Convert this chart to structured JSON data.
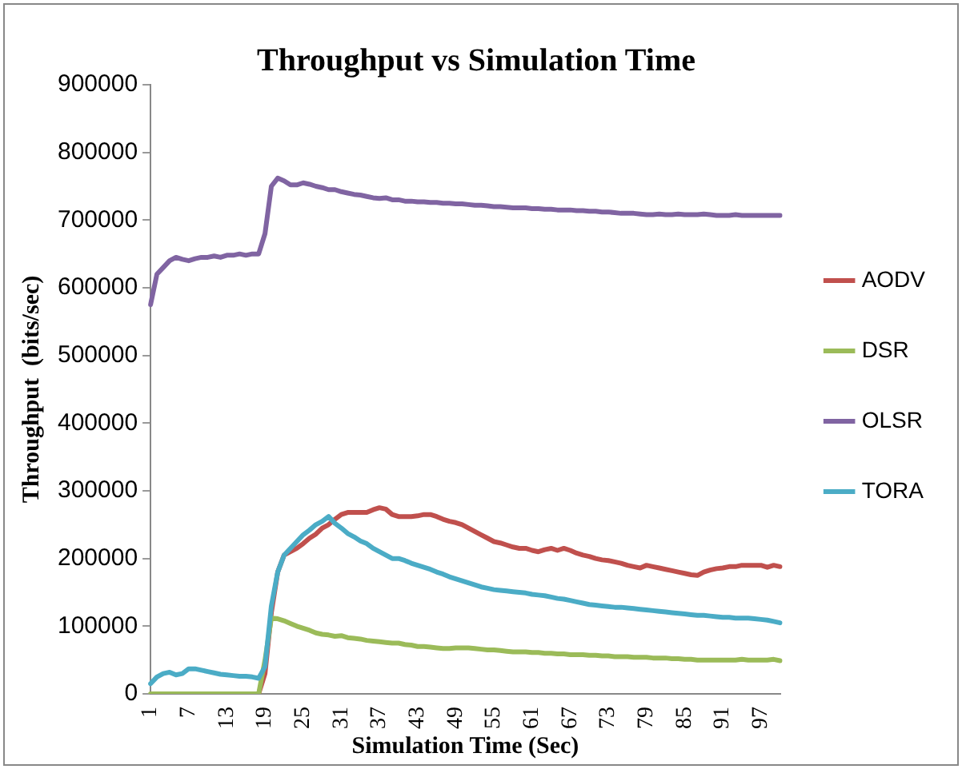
{
  "chart_data": {
    "type": "line",
    "title": "Throughput vs Simulation Time",
    "xlabel": "Simulation Time (Sec)",
    "ylabel": "Throughput  (bits/sec)",
    "categories": [
      "1",
      null,
      null,
      null,
      null,
      null,
      "7",
      null,
      null,
      null,
      null,
      null,
      "13",
      null,
      null,
      null,
      null,
      null,
      "19",
      null,
      null,
      null,
      null,
      null,
      "25",
      null,
      null,
      null,
      null,
      null,
      "31",
      null,
      null,
      null,
      null,
      null,
      "37",
      null,
      null,
      null,
      null,
      null,
      "43",
      null,
      null,
      null,
      null,
      null,
      "49",
      null,
      null,
      null,
      null,
      null,
      "55",
      null,
      null,
      null,
      null,
      null,
      "61",
      null,
      null,
      null,
      null,
      null,
      "67",
      null,
      null,
      null,
      null,
      null,
      "73",
      null,
      null,
      null,
      null,
      null,
      "79",
      null,
      null,
      null,
      null,
      null,
      "85",
      null,
      null,
      null,
      null,
      null,
      "91",
      null,
      null,
      null,
      null,
      null,
      "97",
      null,
      null,
      null
    ],
    "ylim": [
      0,
      900000
    ],
    "yticks": [
      0,
      100000,
      200000,
      300000,
      400000,
      500000,
      600000,
      700000,
      800000,
      900000
    ],
    "grid": false,
    "legend": "right",
    "marker": "none",
    "line_style": "solid",
    "series": [
      {
        "name": "AODV",
        "color": "#c0504d",
        "values": [
          null,
          null,
          null,
          null,
          null,
          null,
          null,
          null,
          null,
          null,
          null,
          null,
          null,
          null,
          null,
          null,
          null,
          0,
          30000,
          120000,
          180000,
          205000,
          210000,
          215000,
          222000,
          230000,
          236000,
          245000,
          250000,
          258000,
          265000,
          268000,
          268000,
          268000,
          268000,
          272000,
          275000,
          273000,
          265000,
          262000,
          262000,
          262000,
          263000,
          265000,
          265000,
          262000,
          258000,
          255000,
          253000,
          250000,
          245000,
          240000,
          235000,
          230000,
          225000,
          223000,
          220000,
          217000,
          215000,
          215000,
          212000,
          210000,
          213000,
          215000,
          212000,
          215000,
          212000,
          208000,
          205000,
          203000,
          200000,
          198000,
          197000,
          195000,
          193000,
          190000,
          188000,
          186000,
          190000,
          188000,
          186000,
          184000,
          182000,
          180000,
          178000,
          176000,
          175000,
          180000,
          183000,
          185000,
          186000,
          188000,
          188000,
          190000,
          190000,
          190000,
          190000,
          187000,
          190000,
          188000
        ]
      },
      {
        "name": "DSR",
        "color": "#9bbb59",
        "values": [
          0,
          0,
          0,
          0,
          0,
          0,
          0,
          0,
          0,
          0,
          0,
          0,
          0,
          0,
          0,
          0,
          0,
          0,
          50000,
          112000,
          111000,
          108000,
          104000,
          100000,
          97000,
          94000,
          90000,
          88000,
          87000,
          85000,
          86000,
          83000,
          82000,
          81000,
          79000,
          78000,
          77000,
          76000,
          75000,
          75000,
          73000,
          72000,
          70000,
          70000,
          69000,
          68000,
          67000,
          67000,
          68000,
          68000,
          68000,
          67000,
          66000,
          65000,
          65000,
          64000,
          63000,
          62000,
          62000,
          62000,
          61000,
          61000,
          60000,
          60000,
          59000,
          59000,
          58000,
          58000,
          58000,
          57000,
          57000,
          56000,
          56000,
          55000,
          55000,
          55000,
          54000,
          54000,
          54000,
          53000,
          53000,
          53000,
          52000,
          52000,
          51000,
          51000,
          50000,
          50000,
          50000,
          50000,
          50000,
          50000,
          50000,
          51000,
          50000,
          50000,
          50000,
          50000,
          51000,
          49000
        ]
      },
      {
        "name": "OLSR",
        "color": "#8064a2",
        "values": [
          575000,
          620000,
          630000,
          640000,
          645000,
          642000,
          640000,
          643000,
          645000,
          645000,
          647000,
          645000,
          648000,
          648000,
          650000,
          648000,
          650000,
          650000,
          680000,
          750000,
          762000,
          758000,
          752000,
          752000,
          755000,
          753000,
          750000,
          748000,
          745000,
          745000,
          742000,
          740000,
          738000,
          737000,
          735000,
          733000,
          732000,
          733000,
          730000,
          730000,
          728000,
          728000,
          727000,
          727000,
          726000,
          726000,
          725000,
          725000,
          724000,
          724000,
          723000,
          722000,
          722000,
          721000,
          720000,
          720000,
          719000,
          718000,
          718000,
          718000,
          717000,
          717000,
          716000,
          716000,
          715000,
          715000,
          715000,
          714000,
          714000,
          713000,
          713000,
          712000,
          712000,
          711000,
          710000,
          710000,
          710000,
          709000,
          708000,
          708000,
          709000,
          708000,
          708000,
          709000,
          708000,
          708000,
          708000,
          709000,
          708000,
          707000,
          707000,
          707000,
          708000,
          707000,
          707000,
          707000,
          707000,
          707000,
          707000,
          707000
        ]
      },
      {
        "name": "TORA",
        "color": "#4bacc6",
        "values": [
          15000,
          25000,
          30000,
          32000,
          28000,
          30000,
          37000,
          37000,
          35000,
          33000,
          31000,
          29000,
          28000,
          27000,
          26000,
          26000,
          25000,
          23000,
          40000,
          130000,
          180000,
          205000,
          215000,
          225000,
          235000,
          242000,
          250000,
          255000,
          262000,
          252000,
          245000,
          237000,
          232000,
          226000,
          222000,
          215000,
          210000,
          205000,
          200000,
          200000,
          197000,
          193000,
          190000,
          187000,
          184000,
          180000,
          177000,
          173000,
          170000,
          167000,
          164000,
          161000,
          158000,
          156000,
          154000,
          153000,
          152000,
          151000,
          150000,
          149000,
          147000,
          146000,
          145000,
          143000,
          141000,
          140000,
          138000,
          136000,
          134000,
          132000,
          131000,
          130000,
          129000,
          128000,
          128000,
          127000,
          126000,
          125000,
          124000,
          123000,
          122000,
          121000,
          120000,
          119000,
          118000,
          117000,
          116000,
          116000,
          115000,
          114000,
          113000,
          113000,
          112000,
          112000,
          112000,
          111000,
          110000,
          109000,
          107000,
          105000
        ]
      }
    ]
  }
}
